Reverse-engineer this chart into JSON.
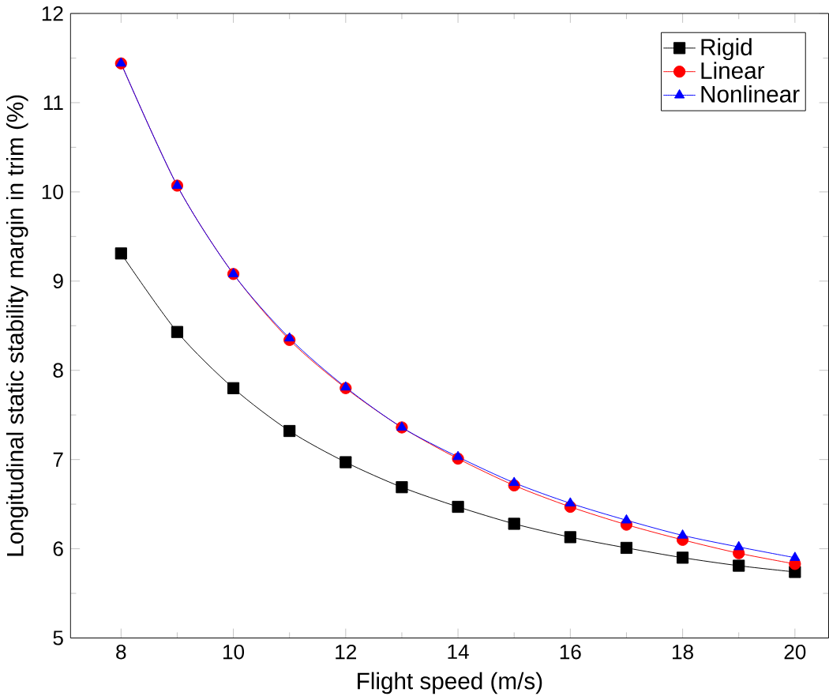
{
  "chart_data": {
    "type": "line",
    "xlabel": "Flight speed (m/s)",
    "ylabel": "Longitudinal static stability margin in trim (%)",
    "x": [
      8,
      9,
      10,
      11,
      12,
      13,
      14,
      15,
      16,
      17,
      18,
      19,
      20
    ],
    "xlim": [
      7.1,
      20.6
    ],
    "xticks": [
      8,
      10,
      12,
      14,
      16,
      18,
      20
    ],
    "ylim": [
      5,
      12
    ],
    "yticks": [
      5,
      6,
      7,
      8,
      9,
      10,
      11,
      12
    ],
    "legend": "top right",
    "grid": false,
    "series": [
      {
        "name": "Rigid",
        "color": "#000000",
        "marker": "square",
        "values": [
          9.31,
          8.43,
          7.8,
          7.32,
          6.97,
          6.69,
          6.47,
          6.28,
          6.13,
          6.01,
          5.9,
          5.81,
          5.74
        ]
      },
      {
        "name": "Linear",
        "color": "#ff0000",
        "marker": "circle",
        "values": [
          11.44,
          10.07,
          9.08,
          8.34,
          7.8,
          7.36,
          7.01,
          6.71,
          6.47,
          6.27,
          6.1,
          5.95,
          5.83
        ]
      },
      {
        "name": "Nonlinear",
        "color": "#0000ff",
        "marker": "triangle",
        "values": [
          11.44,
          10.07,
          9.08,
          8.36,
          7.81,
          7.36,
          7.03,
          6.74,
          6.51,
          6.32,
          6.15,
          6.02,
          5.9
        ]
      }
    ]
  }
}
